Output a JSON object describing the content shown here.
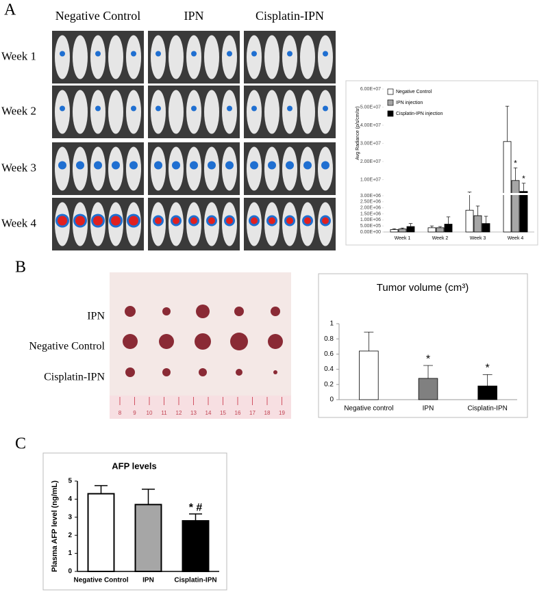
{
  "panel_a": {
    "label": "A",
    "columns": [
      "Negative Control",
      "IPN",
      "Cisplatin-IPN"
    ],
    "rows": [
      "Week 1",
      "Week 2",
      "Week 3",
      "Week 4"
    ]
  },
  "panel_b": {
    "label": "B",
    "photo_labels": [
      "IPN",
      "Negative Control",
      "Cisplatin-IPN"
    ],
    "ruler": [
      8,
      9,
      10,
      11,
      12,
      13,
      14,
      15,
      16,
      17,
      18,
      19
    ]
  },
  "panel_c": {
    "label": "C"
  },
  "chart_data": [
    {
      "type": "bar",
      "y_label": "Avg Radiance (p/s/cm/sr)",
      "categories": [
        "Week 1",
        "Week 2",
        "Week 3",
        "Week 4"
      ],
      "series": [
        {
          "name": "Negative Control",
          "color": "#ffffff",
          "values": [
            200000,
            350000,
            1800000,
            31000000
          ],
          "errors": [
            70000,
            150000,
            1300000,
            19500000
          ],
          "significance": [
            null,
            null,
            null,
            null
          ]
        },
        {
          "name": "IPN injection",
          "color": "#a6a6a6",
          "values": [
            250000,
            350000,
            1350000,
            9500000
          ],
          "errors": [
            80000,
            100000,
            800000,
            7000000
          ],
          "significance": [
            null,
            null,
            null,
            "*"
          ]
        },
        {
          "name": "Cisplatin-IPN injection",
          "color": "#000000",
          "values": [
            450000,
            650000,
            700000,
            3500000
          ],
          "errors": [
            250000,
            600000,
            600000,
            4500000
          ],
          "significance": [
            null,
            null,
            null,
            "*"
          ]
        }
      ],
      "ylim": [
        0,
        60000000
      ],
      "ybreak": 3000000,
      "yticks": [
        {
          "value": 0,
          "label": "0.00E+00"
        },
        {
          "value": 500000,
          "label": "5.00E+05"
        },
        {
          "value": 1000000,
          "label": "1.00E+06"
        },
        {
          "value": 1500000,
          "label": "1.50E+06"
        },
        {
          "value": 2000000,
          "label": "2.00E+06"
        },
        {
          "value": 2500000,
          "label": "2.50E+06"
        },
        {
          "value": 3000000,
          "label": "3.00E+06"
        },
        {
          "value": 10000000,
          "label": "1.00E+07"
        },
        {
          "value": 20000000,
          "label": "2.00E+07"
        },
        {
          "value": 30000000,
          "label": "3.00E+07"
        },
        {
          "value": 40000000,
          "label": "4.00E+07"
        },
        {
          "value": 50000000,
          "label": "5.00E+07"
        },
        {
          "value": 60000000,
          "label": "6.00E+07"
        }
      ],
      "legend": "top-left"
    },
    {
      "type": "bar",
      "title": "Tumor volume (cm³)",
      "categories": [
        "Negative control",
        "IPN",
        "Cisplatin-IPN"
      ],
      "values": [
        0.64,
        0.28,
        0.18
      ],
      "errors": [
        0.25,
        0.17,
        0.15
      ],
      "colors": [
        "#ffffff",
        "#808080",
        "#000000"
      ],
      "significance": [
        null,
        "*",
        "*"
      ],
      "ylim": [
        0,
        1
      ],
      "yticks": [
        0,
        0.2,
        0.4,
        0.6,
        0.8,
        1
      ]
    },
    {
      "type": "bar",
      "title": "AFP levels",
      "y_label": "Plasma AFP level (ng/mL)",
      "categories": [
        "Negative Control",
        "IPN",
        "Cisplatin-IPN"
      ],
      "values": [
        4.3,
        3.7,
        2.8
      ],
      "errors": [
        0.45,
        0.85,
        0.38
      ],
      "colors": [
        "#ffffff",
        "#a6a6a6",
        "#000000"
      ],
      "significance": [
        null,
        null,
        "* #"
      ],
      "ylim": [
        0,
        5
      ],
      "yticks": [
        0,
        1,
        2,
        3,
        4,
        5
      ]
    }
  ]
}
